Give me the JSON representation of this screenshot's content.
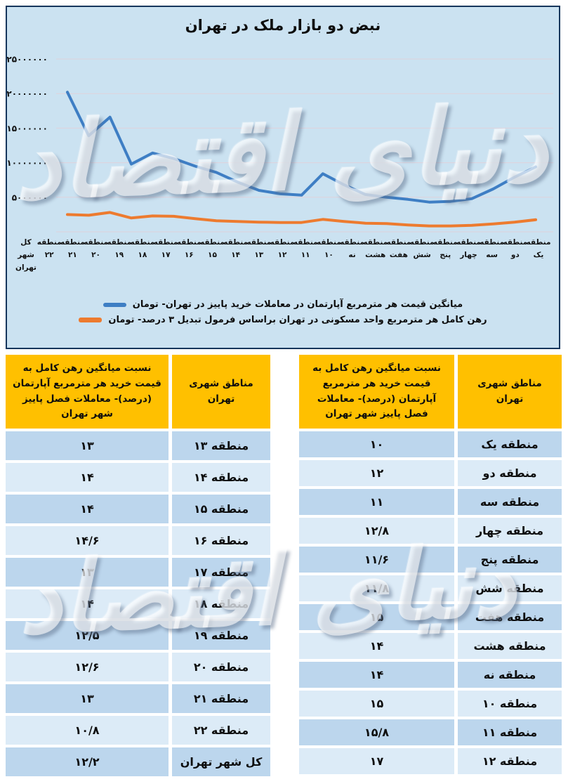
{
  "colors": {
    "chart_bg": "#cbe2f1",
    "chart_border": "#16365c",
    "price_line": "#3e7ec4",
    "mortgage_line": "#ed7b2f",
    "gridline": "#e3ced6",
    "table_header": "#ffc000",
    "row_dark": "#bcd6ed",
    "row_light": "#dcebf7"
  },
  "watermark": {
    "text": "دنیای اقتصاد"
  },
  "chart_data": {
    "type": "line",
    "title": "نبض دو بازار ملک در تهران",
    "grid": true,
    "legend_position": "bottom",
    "ylim": [
      0,
      25000000
    ],
    "y_ticks": [
      {
        "value": 25000000,
        "label": "۲۵۰۰۰۰۰۰"
      },
      {
        "value": 20000000,
        "label": "۲۰۰۰۰۰۰۰"
      },
      {
        "value": 15000000,
        "label": "۱۵۰۰۰۰۰۰"
      },
      {
        "value": 10000000,
        "label": "۱۰۰۰۰۰۰۰"
      },
      {
        "value": 5000000,
        "label": "۵۰۰۰۰۰۰"
      }
    ],
    "y_gridlines": [
      25000000,
      20000000,
      15000000,
      10000000,
      5000000,
      0
    ],
    "display_note": "category labels are rendered right-to-left (منطقه یک at far right, کل شهر تهران at far left) while the plotted series runs left-to-right from region 1 to the whole city",
    "categories_reading_order": [
      "منطقه یک",
      "منطقه دو",
      "منطقه سه",
      "منطقه چهار",
      "منطقه پنج",
      "منطقه شش",
      "منطقه هفت",
      "منطقه هشت",
      "منطقه نه",
      "منطقه ۱۰",
      "منطقه ۱۱",
      "منطقه ۱۲",
      "منطقه ۱۳",
      "منطقه ۱۴",
      "منطقه ۱۵",
      "منطقه ۱۶",
      "منطقه ۱۷",
      "منطقه ۱۸",
      "منطقه ۱۹",
      "منطقه ۲۰",
      "منطقه ۲۱",
      "منطقه ۲۲",
      "کل شهر تهران"
    ],
    "x_label_columns_ltr": [
      [
        "کل",
        "شهر",
        "تهران"
      ],
      [
        "منطقه",
        "۲۲"
      ],
      [
        "منطقه",
        "۲۱"
      ],
      [
        "منطقه",
        "۲۰"
      ],
      [
        "منطقه",
        "۱۹"
      ],
      [
        "منطقه",
        "۱۸"
      ],
      [
        "منطقه",
        "۱۷"
      ],
      [
        "منطقه",
        "۱۶"
      ],
      [
        "منطقه",
        "۱۵"
      ],
      [
        "منطقه",
        "۱۴"
      ],
      [
        "منطقه",
        "۱۳"
      ],
      [
        "منطقه",
        "۱۲"
      ],
      [
        "منطقه",
        "۱۱"
      ],
      [
        "منطقه",
        "۱۰"
      ],
      [
        "منطقه",
        "نه"
      ],
      [
        "منطقه",
        "هشت"
      ],
      [
        "منطقه",
        "هفت"
      ],
      [
        "منطقه",
        "شش"
      ],
      [
        "منطقه",
        "پنج"
      ],
      [
        "منطقه",
        "چهار"
      ],
      [
        "منطقه",
        "سه"
      ],
      [
        "منطقه",
        "دو"
      ],
      [
        "منطقه",
        "یک"
      ]
    ],
    "series": [
      {
        "name": "میانگین قیمت هر مترمربع آپارتمان در معاملات خرید پاییز در تهران- تومان",
        "color": "#3e7ec4",
        "values_toman_ltr": [
          20200000,
          13900000,
          16600000,
          9800000,
          11400000,
          10600000,
          9500000,
          8600000,
          7200000,
          6000000,
          5500000,
          5300000,
          8400000,
          6800000,
          5400000,
          5000000,
          4700000,
          4300000,
          4400000,
          4800000,
          6200000,
          7900000,
          9400000
        ]
      },
      {
        "name": "رهن کامل هر مترمربع واحد مسکونی در تهران براساس فرمول تبدیل ۳ درصد- تومان",
        "color": "#ed7b2f",
        "values_toman_ltr": [
          2500000,
          2400000,
          2800000,
          2000000,
          2300000,
          2250000,
          1900000,
          1600000,
          1500000,
          1400000,
          1350000,
          1350000,
          1800000,
          1500000,
          1250000,
          1200000,
          1000000,
          850000,
          850000,
          950000,
          1150000,
          1400000,
          1750000
        ]
      }
    ]
  },
  "tables": {
    "header_region": "مناطق شهری تهران",
    "header_value": "نسبت میانگین رهن کامل به قیمت خرید هر مترمربع آپارتمان (درصد)- معاملات فصل پاییز شهر تهران",
    "right_rows": [
      {
        "region": "منطقه یک",
        "value": "۱۰"
      },
      {
        "region": "منطقه دو",
        "value": "۱۲"
      },
      {
        "region": "منطقه سه",
        "value": "۱۱"
      },
      {
        "region": "منطقه چهار",
        "value": "۱۲/۸"
      },
      {
        "region": "منطقه پنج",
        "value": "۱۱/۶"
      },
      {
        "region": "منطقه شش",
        "value": "۱۱/۸"
      },
      {
        "region": "منطقه هفت",
        "value": "۱۵"
      },
      {
        "region": "منطقه هشت",
        "value": "۱۴"
      },
      {
        "region": "منطقه نه",
        "value": "۱۴"
      },
      {
        "region": "منطقه ۱۰",
        "value": "۱۵"
      },
      {
        "region": "منطقه ۱۱",
        "value": "۱۵/۸"
      },
      {
        "region": "منطقه ۱۲",
        "value": "۱۷"
      }
    ],
    "left_rows": [
      {
        "region": "منطقه ۱۳",
        "value": "۱۳"
      },
      {
        "region": "منطقه ۱۴",
        "value": "۱۴"
      },
      {
        "region": "منطقه ۱۵",
        "value": "۱۴"
      },
      {
        "region": "منطقه ۱۶",
        "value": "۱۴/۶"
      },
      {
        "region": "منطقه ۱۷",
        "value": "۱۳"
      },
      {
        "region": "منطقه ۱۸",
        "value": "۱۴"
      },
      {
        "region": "منطقه ۱۹",
        "value": "۱۲/۵"
      },
      {
        "region": "منطقه ۲۰",
        "value": "۱۲/۶"
      },
      {
        "region": "منطقه ۲۱",
        "value": "۱۳"
      },
      {
        "region": "منطقه ۲۲",
        "value": "۱۰/۸"
      },
      {
        "region": "کل شهر تهران",
        "value": "۱۲/۲"
      }
    ]
  }
}
